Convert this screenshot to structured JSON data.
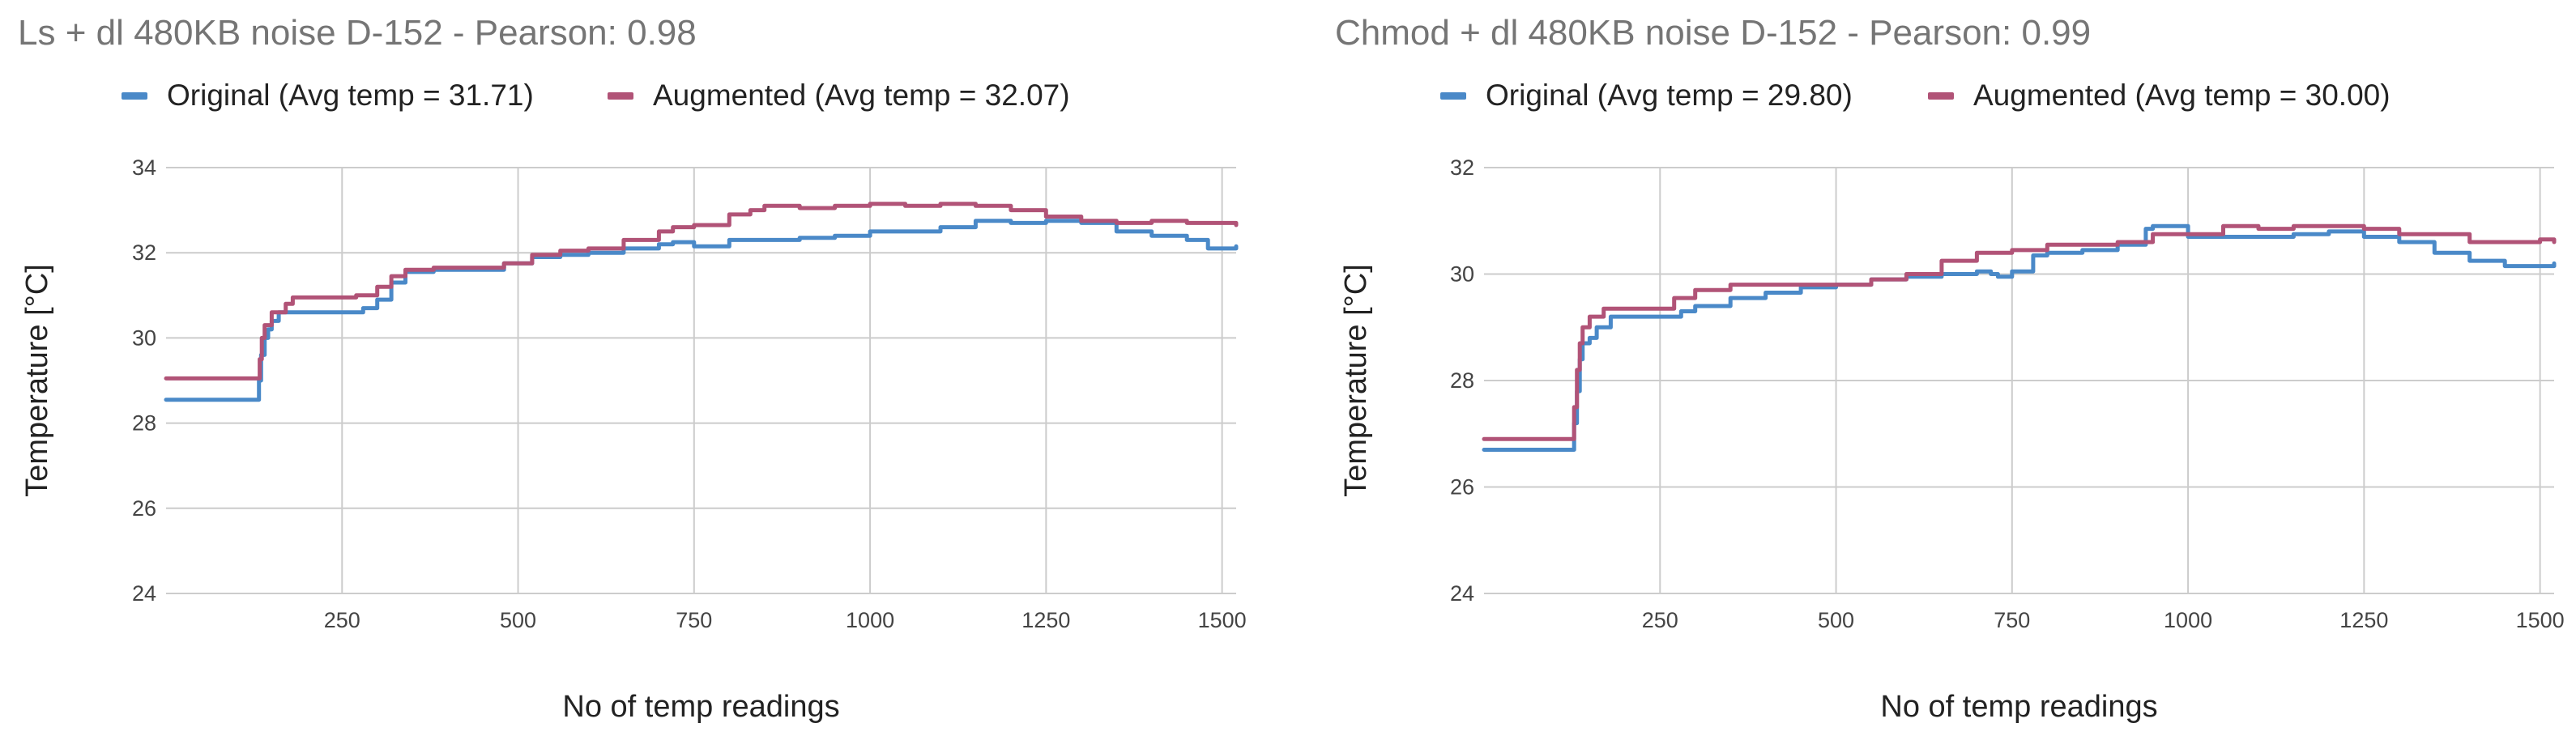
{
  "chart_data": [
    {
      "type": "line",
      "title": "Ls + dl 480KB noise D-152 - Pearson: 0.98",
      "xlabel": "No of temp readings",
      "ylabel": "Temperature [°C]",
      "xlim": [
        0,
        1520
      ],
      "ylim": [
        24,
        34
      ],
      "x_ticks": [
        250,
        500,
        750,
        1000,
        1250,
        1500
      ],
      "y_ticks": [
        24,
        26,
        28,
        30,
        32,
        34
      ],
      "grid": true,
      "legend_position": "top",
      "series": [
        {
          "name": "Original (Avg temp = 31.71)",
          "color": "#4a89c8",
          "x": [
            0,
            130,
            132,
            135,
            140,
            145,
            150,
            160,
            180,
            200,
            250,
            270,
            280,
            300,
            320,
            340,
            380,
            420,
            480,
            520,
            560,
            600,
            650,
            700,
            720,
            750,
            800,
            850,
            900,
            950,
            1000,
            1050,
            1100,
            1140,
            1150,
            1200,
            1250,
            1300,
            1350,
            1400,
            1450,
            1480,
            1520
          ],
          "y": [
            28.55,
            28.55,
            29.0,
            29.6,
            30.0,
            30.2,
            30.4,
            30.6,
            30.6,
            30.6,
            30.6,
            30.6,
            30.7,
            30.9,
            31.3,
            31.55,
            31.6,
            31.6,
            31.75,
            31.9,
            31.95,
            32.0,
            32.1,
            32.2,
            32.25,
            32.15,
            32.3,
            32.3,
            32.35,
            32.4,
            32.5,
            32.5,
            32.6,
            32.6,
            32.75,
            32.7,
            32.75,
            32.7,
            32.5,
            32.4,
            32.3,
            32.1,
            32.15
          ]
        },
        {
          "name": "Augmented (Avg temp = 32.07)",
          "color": "#b15377",
          "x": [
            0,
            130,
            133,
            136,
            140,
            150,
            170,
            180,
            200,
            250,
            270,
            300,
            320,
            340,
            380,
            420,
            480,
            520,
            560,
            600,
            650,
            700,
            720,
            750,
            800,
            830,
            850,
            900,
            950,
            1000,
            1050,
            1100,
            1150,
            1200,
            1250,
            1300,
            1350,
            1400,
            1450,
            1500,
            1520
          ],
          "y": [
            29.05,
            29.05,
            29.5,
            30.0,
            30.3,
            30.6,
            30.8,
            30.95,
            30.95,
            30.95,
            31.0,
            31.2,
            31.45,
            31.6,
            31.65,
            31.65,
            31.75,
            31.95,
            32.05,
            32.1,
            32.3,
            32.5,
            32.6,
            32.65,
            32.9,
            33.0,
            33.1,
            33.05,
            33.1,
            33.15,
            33.1,
            33.15,
            33.1,
            33.0,
            32.85,
            32.75,
            32.7,
            32.75,
            32.7,
            32.7,
            32.65
          ]
        }
      ]
    },
    {
      "type": "line",
      "title": "Chmod + dl 480KB noise D-152 - Pearson: 0.99",
      "xlabel": "No of temp readings",
      "ylabel": "Temperature [°C]",
      "xlim": [
        0,
        1520
      ],
      "ylim": [
        24,
        32
      ],
      "x_ticks": [
        250,
        500,
        750,
        1000,
        1250,
        1500
      ],
      "y_ticks": [
        24,
        26,
        28,
        30,
        32
      ],
      "grid": true,
      "legend_position": "top",
      "series": [
        {
          "name": "Original (Avg temp = 29.80)",
          "color": "#4a89c8",
          "x": [
            0,
            125,
            128,
            132,
            136,
            140,
            150,
            160,
            180,
            200,
            260,
            280,
            300,
            350,
            400,
            450,
            500,
            550,
            600,
            650,
            700,
            720,
            730,
            750,
            780,
            800,
            850,
            900,
            940,
            950,
            1000,
            1050,
            1100,
            1150,
            1200,
            1250,
            1300,
            1350,
            1400,
            1450,
            1500,
            1520
          ],
          "y": [
            26.7,
            26.7,
            27.2,
            27.8,
            28.4,
            28.7,
            28.8,
            29.0,
            29.2,
            29.2,
            29.2,
            29.3,
            29.4,
            29.55,
            29.65,
            29.75,
            29.8,
            29.9,
            29.95,
            30.0,
            30.05,
            30.0,
            29.95,
            30.05,
            30.35,
            30.4,
            30.45,
            30.55,
            30.85,
            30.9,
            30.7,
            30.7,
            30.7,
            30.75,
            30.8,
            30.7,
            30.6,
            30.4,
            30.25,
            30.15,
            30.15,
            30.2
          ]
        },
        {
          "name": "Augmented (Avg temp = 30.00)",
          "color": "#b15377",
          "x": [
            0,
            125,
            128,
            132,
            136,
            140,
            150,
            170,
            190,
            250,
            270,
            300,
            350,
            400,
            450,
            500,
            550,
            600,
            650,
            700,
            750,
            800,
            850,
            900,
            950,
            1000,
            1050,
            1100,
            1150,
            1200,
            1250,
            1300,
            1350,
            1400,
            1450,
            1500,
            1520
          ],
          "y": [
            26.9,
            26.9,
            27.5,
            28.2,
            28.7,
            29.0,
            29.2,
            29.35,
            29.35,
            29.35,
            29.55,
            29.7,
            29.8,
            29.8,
            29.8,
            29.8,
            29.9,
            30.0,
            30.25,
            30.4,
            30.45,
            30.55,
            30.55,
            30.6,
            30.75,
            30.75,
            30.9,
            30.85,
            30.9,
            30.9,
            30.85,
            30.75,
            30.75,
            30.6,
            30.6,
            30.65,
            30.6
          ]
        }
      ]
    }
  ]
}
